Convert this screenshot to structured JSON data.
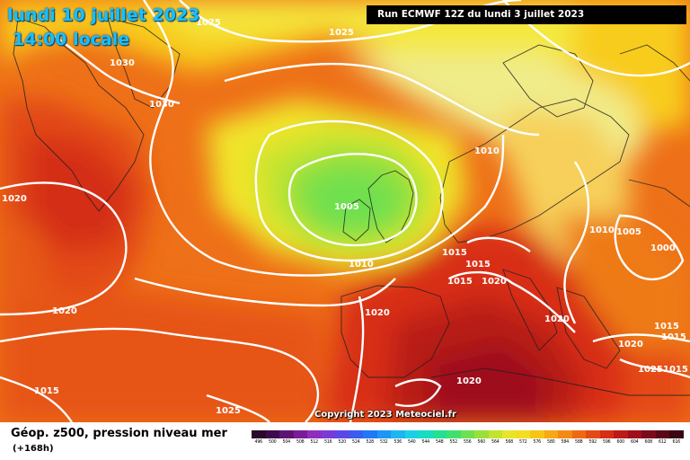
{
  "header": {
    "date_label": "lundi 10 juillet 2023",
    "time_label": "14:00 locale",
    "run_label": "Run ECMWF 12Z du lundi 3 juillet 2023"
  },
  "footer": {
    "title": "Géop. z500, pression niveau mer",
    "subtitle": "(+168h)",
    "copyright": "Copyright 2023 Meteociel.fr"
  },
  "scale": {
    "ticks": [
      "496",
      "500",
      "504",
      "508",
      "512",
      "516",
      "520",
      "524",
      "528",
      "532",
      "536",
      "540",
      "544",
      "548",
      "552",
      "556",
      "560",
      "564",
      "568",
      "572",
      "576",
      "580",
      "584",
      "588",
      "592",
      "596",
      "600",
      "604",
      "608",
      "612",
      "616"
    ],
    "colors": [
      "#2a0a2a",
      "#3e0c4a",
      "#5c1473",
      "#7a1c9a",
      "#8f2dbd",
      "#7a3ad8",
      "#5a48e8",
      "#3a5cf2",
      "#1f78f5",
      "#1e96f5",
      "#1cb6f0",
      "#1ad0e6",
      "#18dcc0",
      "#22e094",
      "#40e070",
      "#6ee050",
      "#9ae038",
      "#c4e22e",
      "#e8e42a",
      "#f4dc20",
      "#f8c418",
      "#f8a814",
      "#f48a12",
      "#ee6a12",
      "#e44a14",
      "#d42e16",
      "#bc1a18",
      "#9e0e1c",
      "#7a0a1c",
      "#5a0818",
      "#3a0610"
    ]
  },
  "isobars": {
    "labels": [
      "1025",
      "1030",
      "1025",
      "1030",
      "1020",
      "1020",
      "1015",
      "1025",
      "1005",
      "1010",
      "1010",
      "1015",
      "1015",
      "1015",
      "1020",
      "1020",
      "1010",
      "1005",
      "1000",
      "1020",
      "1015",
      "1015",
      "1020",
      "1025",
      "1015",
      "1020"
    ]
  },
  "colors": {
    "high_geopotential": "#b81a14",
    "low_geopotential": "#6ee050",
    "isobar_line": "#ffffff"
  }
}
